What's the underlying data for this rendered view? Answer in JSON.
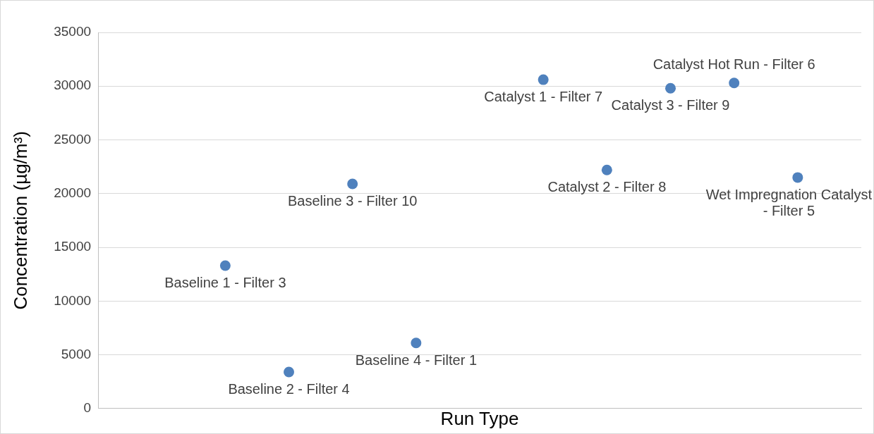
{
  "chart_data": {
    "type": "scatter",
    "xlabel": "Run Type",
    "ylabel": "Concentration (µg/m³)",
    "categories": [
      null,
      null,
      null,
      null,
      null,
      null,
      null,
      null,
      null,
      null,
      null,
      null,
      null
    ],
    "series": [
      {
        "color": "#4f81bd",
        "values": [
          null,
          null,
          13300,
          3400,
          20900,
          6100,
          null,
          30600,
          22200,
          29800,
          30300,
          21500,
          null
        ],
        "value_labels": [
          null,
          null,
          "Baseline 1 - Filter 3",
          "Baseline 2 - Filter 4",
          "Baseline 3 - Filter 10",
          "Baseline 4 - Filter 1",
          null,
          "Catalyst 1 - Filter 7",
          "Catalyst 2 - Filter 8",
          "Catalyst 3 - Filter 9",
          "Catalyst Hot Run - Filter 6",
          "Wet Impregnation Catalyst - Filter 5",
          null
        ]
      }
    ],
    "ylim": [
      0,
      35000
    ],
    "yticks": [
      0,
      5000,
      10000,
      15000,
      20000,
      25000,
      30000,
      35000
    ],
    "grid": "y",
    "legend": false,
    "marker": "circle",
    "tick_labels": "y"
  }
}
